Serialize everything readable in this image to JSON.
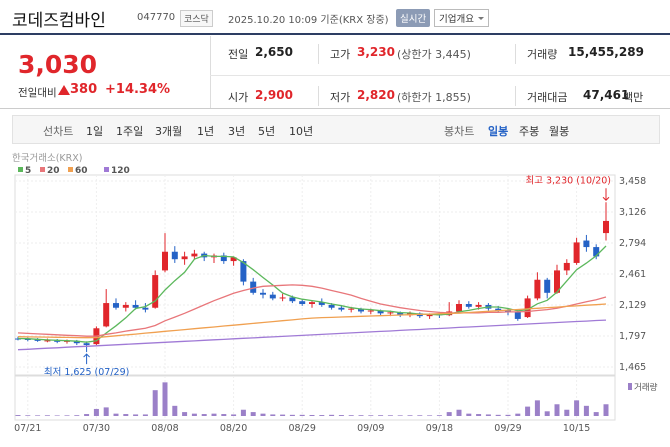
{
  "header": {
    "name": "코데즈컴바인",
    "code": "047770",
    "market": "코스닥",
    "timestamp": "2025.10.20 10:09 기준(KRX 장중)",
    "realtime": "실시간",
    "company_info": "기업개요"
  },
  "quote": {
    "price": "3,030",
    "change_label": "전일대비",
    "change": "380",
    "change_pct": "+14.34%",
    "stats": [
      {
        "label": "전일",
        "value": "2,650"
      },
      {
        "label": "고가",
        "value": "3,230",
        "note": "(상한가 3,445)"
      },
      {
        "label": "거래량",
        "value": "15,455,289"
      },
      {
        "label": "시가",
        "value": "2,900"
      },
      {
        "label": "저가",
        "value": "2,820",
        "note": "(하한가 1,855)"
      },
      {
        "label": "거래대금",
        "value": "47,461",
        "unit": "백만"
      }
    ]
  },
  "tabs": {
    "line_label": "선차트",
    "line_periods": [
      "1일",
      "1주일",
      "3개월",
      "1년",
      "3년",
      "5년",
      "10년"
    ],
    "candle_label": "봉차트",
    "candle_periods": [
      "일봉",
      "주봉",
      "월봉"
    ],
    "selected_candle": 0
  },
  "chart_data": {
    "type": "candlestick",
    "source": "한국거래소(KRX)",
    "categories": [
      null,
      "07/21",
      null,
      null,
      null,
      null,
      null,
      null,
      "07/30",
      null,
      null,
      null,
      null,
      null,
      null,
      "08/08",
      null,
      null,
      null,
      null,
      null,
      null,
      "08/20",
      null,
      null,
      null,
      null,
      null,
      null,
      "08/29",
      null,
      null,
      null,
      null,
      null,
      null,
      "09/09",
      null,
      null,
      null,
      null,
      null,
      null,
      "09/18",
      null,
      null,
      null,
      null,
      null,
      null,
      "09/29",
      null,
      null,
      null,
      null,
      null,
      null,
      "10/15",
      null,
      null,
      null
    ],
    "candles": {
      "up_color": "#e0262b",
      "down_color": "#2462c6",
      "open": [
        1770,
        1765,
        1760,
        1745,
        1750,
        1735,
        1745,
        1720,
        1710,
        1900,
        2150,
        2100,
        2130,
        2100,
        2100,
        2500,
        2700,
        2620,
        2650,
        2680,
        2640,
        2660,
        2600,
        2600,
        2380,
        2260,
        2240,
        2200,
        2210,
        2170,
        2140,
        2160,
        2130,
        2100,
        2080,
        2090,
        2060,
        2070,
        2040,
        2050,
        2020,
        2040,
        2010,
        2030,
        2020,
        2060,
        2140,
        2110,
        2130,
        2090,
        2070,
        2060,
        2000,
        2200,
        2400,
        2260,
        2500,
        2580,
        2820,
        2750,
        2900
      ],
      "high": [
        1790,
        1780,
        1775,
        1770,
        1765,
        1760,
        1755,
        1740,
        1900,
        2300,
        2200,
        2160,
        2180,
        2150,
        2500,
        2900,
        2760,
        2700,
        2720,
        2700,
        2680,
        2690,
        2650,
        2620,
        2420,
        2300,
        2270,
        2250,
        2230,
        2190,
        2180,
        2200,
        2150,
        2130,
        2110,
        2100,
        2090,
        2080,
        2070,
        2060,
        2060,
        2050,
        2040,
        2050,
        2160,
        2180,
        2170,
        2160,
        2150,
        2120,
        2090,
        2080,
        2230,
        2480,
        2420,
        2560,
        2620,
        2850,
        2880,
        2780,
        3230
      ],
      "low": [
        1750,
        1740,
        1735,
        1730,
        1720,
        1715,
        1700,
        1625,
        1700,
        1890,
        2080,
        2060,
        2080,
        2050,
        2090,
        2480,
        2580,
        2560,
        2620,
        2600,
        2580,
        2570,
        2550,
        2340,
        2240,
        2200,
        2180,
        2170,
        2150,
        2120,
        2100,
        2110,
        2080,
        2060,
        2050,
        2040,
        2030,
        2020,
        2010,
        2000,
        2000,
        1990,
        1980,
        1990,
        2010,
        2040,
        2090,
        2080,
        2070,
        2050,
        2020,
        1960,
        1990,
        2180,
        2200,
        2250,
        2450,
        2560,
        2700,
        2620,
        2820
      ],
      "close": [
        1765,
        1760,
        1745,
        1750,
        1735,
        1745,
        1720,
        1700,
        1880,
        2150,
        2100,
        2130,
        2100,
        2080,
        2450,
        2700,
        2620,
        2650,
        2680,
        2640,
        2660,
        2600,
        2640,
        2380,
        2260,
        2240,
        2200,
        2210,
        2170,
        2140,
        2160,
        2130,
        2100,
        2080,
        2090,
        2060,
        2070,
        2040,
        2050,
        2020,
        2040,
        2010,
        2030,
        2020,
        2060,
        2140,
        2110,
        2130,
        2090,
        2070,
        2060,
        1980,
        2200,
        2400,
        2260,
        2500,
        2580,
        2800,
        2750,
        2650,
        3030
      ]
    },
    "ma": [
      {
        "name": "5",
        "color": "#5cb85c",
        "values": [
          1770,
          1768,
          1762,
          1755,
          1751,
          1747,
          1741,
          1731,
          1746,
          1829,
          1906,
          1992,
          2092,
          2112,
          2172,
          2290,
          2390,
          2480,
          2620,
          2660,
          2650,
          2650,
          2645,
          2584,
          2508,
          2424,
          2344,
          2258,
          2216,
          2192,
          2176,
          2162,
          2140,
          2122,
          2100,
          2086,
          2080,
          2068,
          2062,
          2048,
          2044,
          2032,
          2030,
          2024,
          2032,
          2056,
          2072,
          2092,
          2108,
          2108,
          2092,
          2066,
          2080,
          2142,
          2180,
          2268,
          2388,
          2508,
          2578,
          2656,
          2762
        ]
      },
      {
        "name": "20",
        "color": "#e8767a",
        "values": [
          1830,
          1825,
          1820,
          1815,
          1810,
          1805,
          1800,
          1795,
          1795,
          1815,
          1830,
          1850,
          1865,
          1880,
          1910,
          1960,
          2000,
          2040,
          2085,
          2130,
          2175,
          2215,
          2255,
          2285,
          2310,
          2330,
          2335,
          2340,
          2345,
          2340,
          2330,
          2310,
          2285,
          2260,
          2235,
          2200,
          2170,
          2140,
          2120,
          2100,
          2085,
          2070,
          2060,
          2050,
          2045,
          2045,
          2045,
          2045,
          2050,
          2050,
          2055,
          2055,
          2060,
          2070,
          2080,
          2095,
          2115,
          2140,
          2165,
          2185,
          2215
        ]
      },
      {
        "name": "60",
        "color": "#f0a050",
        "values": [
          1790,
          1788,
          1786,
          1785,
          1783,
          1782,
          1780,
          1779,
          1780,
          1790,
          1799,
          1809,
          1818,
          1828,
          1837,
          1847,
          1856,
          1866,
          1875,
          1885,
          1894,
          1904,
          1913,
          1923,
          1932,
          1942,
          1951,
          1961,
          1970,
          1980,
          1989,
          1994,
          1997,
          2001,
          2004,
          2008,
          2011,
          2015,
          2018,
          2022,
          2025,
          2029,
          2032,
          2036,
          2039,
          2042,
          2049,
          2055,
          2062,
          2068,
          2075,
          2081,
          2088,
          2094,
          2101,
          2107,
          2114,
          2120,
          2127,
          2133,
          2140
        ]
      },
      {
        "name": "120",
        "color": "#a07ad6",
        "values": [
          1650,
          1655,
          1661,
          1666,
          1671,
          1677,
          1682,
          1687,
          1692,
          1698,
          1703,
          1708,
          1714,
          1719,
          1724,
          1730,
          1735,
          1740,
          1745,
          1751,
          1756,
          1761,
          1767,
          1772,
          1777,
          1783,
          1788,
          1793,
          1798,
          1804,
          1809,
          1814,
          1820,
          1825,
          1830,
          1836,
          1841,
          1846,
          1851,
          1857,
          1862,
          1867,
          1873,
          1878,
          1883,
          1889,
          1894,
          1899,
          1904,
          1910,
          1915,
          1920,
          1926,
          1931,
          1936,
          1942,
          1947,
          1952,
          1957,
          1963,
          1968
        ]
      }
    ],
    "volume": {
      "name": "거래량",
      "color": "#9b80c8",
      "ylim": [
        0,
        46000000
      ],
      "values": [
        1200000,
        900000,
        800000,
        900000,
        700000,
        800000,
        1000000,
        2500000,
        9000000,
        11000000,
        3000000,
        2500000,
        2000000,
        2000000,
        33000000,
        43000000,
        13000000,
        5000000,
        3000000,
        2500000,
        3000000,
        2500000,
        2000000,
        8000000,
        5000000,
        3000000,
        2000000,
        1800000,
        1500000,
        1500000,
        1300000,
        1200000,
        1500000,
        1200000,
        1000000,
        1000000,
        900000,
        1000000,
        900000,
        800000,
        900000,
        900000,
        800000,
        1000000,
        5000000,
        8000000,
        3000000,
        2500000,
        2000000,
        1500000,
        1500000,
        3000000,
        12000000,
        20000000,
        6000000,
        15000000,
        8000000,
        20000000,
        13000000,
        5000000,
        15000000
      ]
    },
    "ylim": [
      1465,
      3458
    ],
    "yticks": [
      {
        "value": 3458,
        "label": "3,458"
      },
      {
        "value": 3126,
        "label": "3,126"
      },
      {
        "value": 2794,
        "label": "2,794"
      },
      {
        "value": 2461,
        "label": "2,461"
      },
      {
        "value": 2129,
        "label": "2,129"
      },
      {
        "value": 1797,
        "label": "1,797"
      },
      {
        "value": 1465,
        "label": "1,465"
      }
    ],
    "grid": true,
    "high_label": {
      "text": "최고 3,230 (10/20)",
      "value": 3230
    },
    "low_label": {
      "text": "최저 1,625 (07/29)",
      "value": 1625
    }
  }
}
